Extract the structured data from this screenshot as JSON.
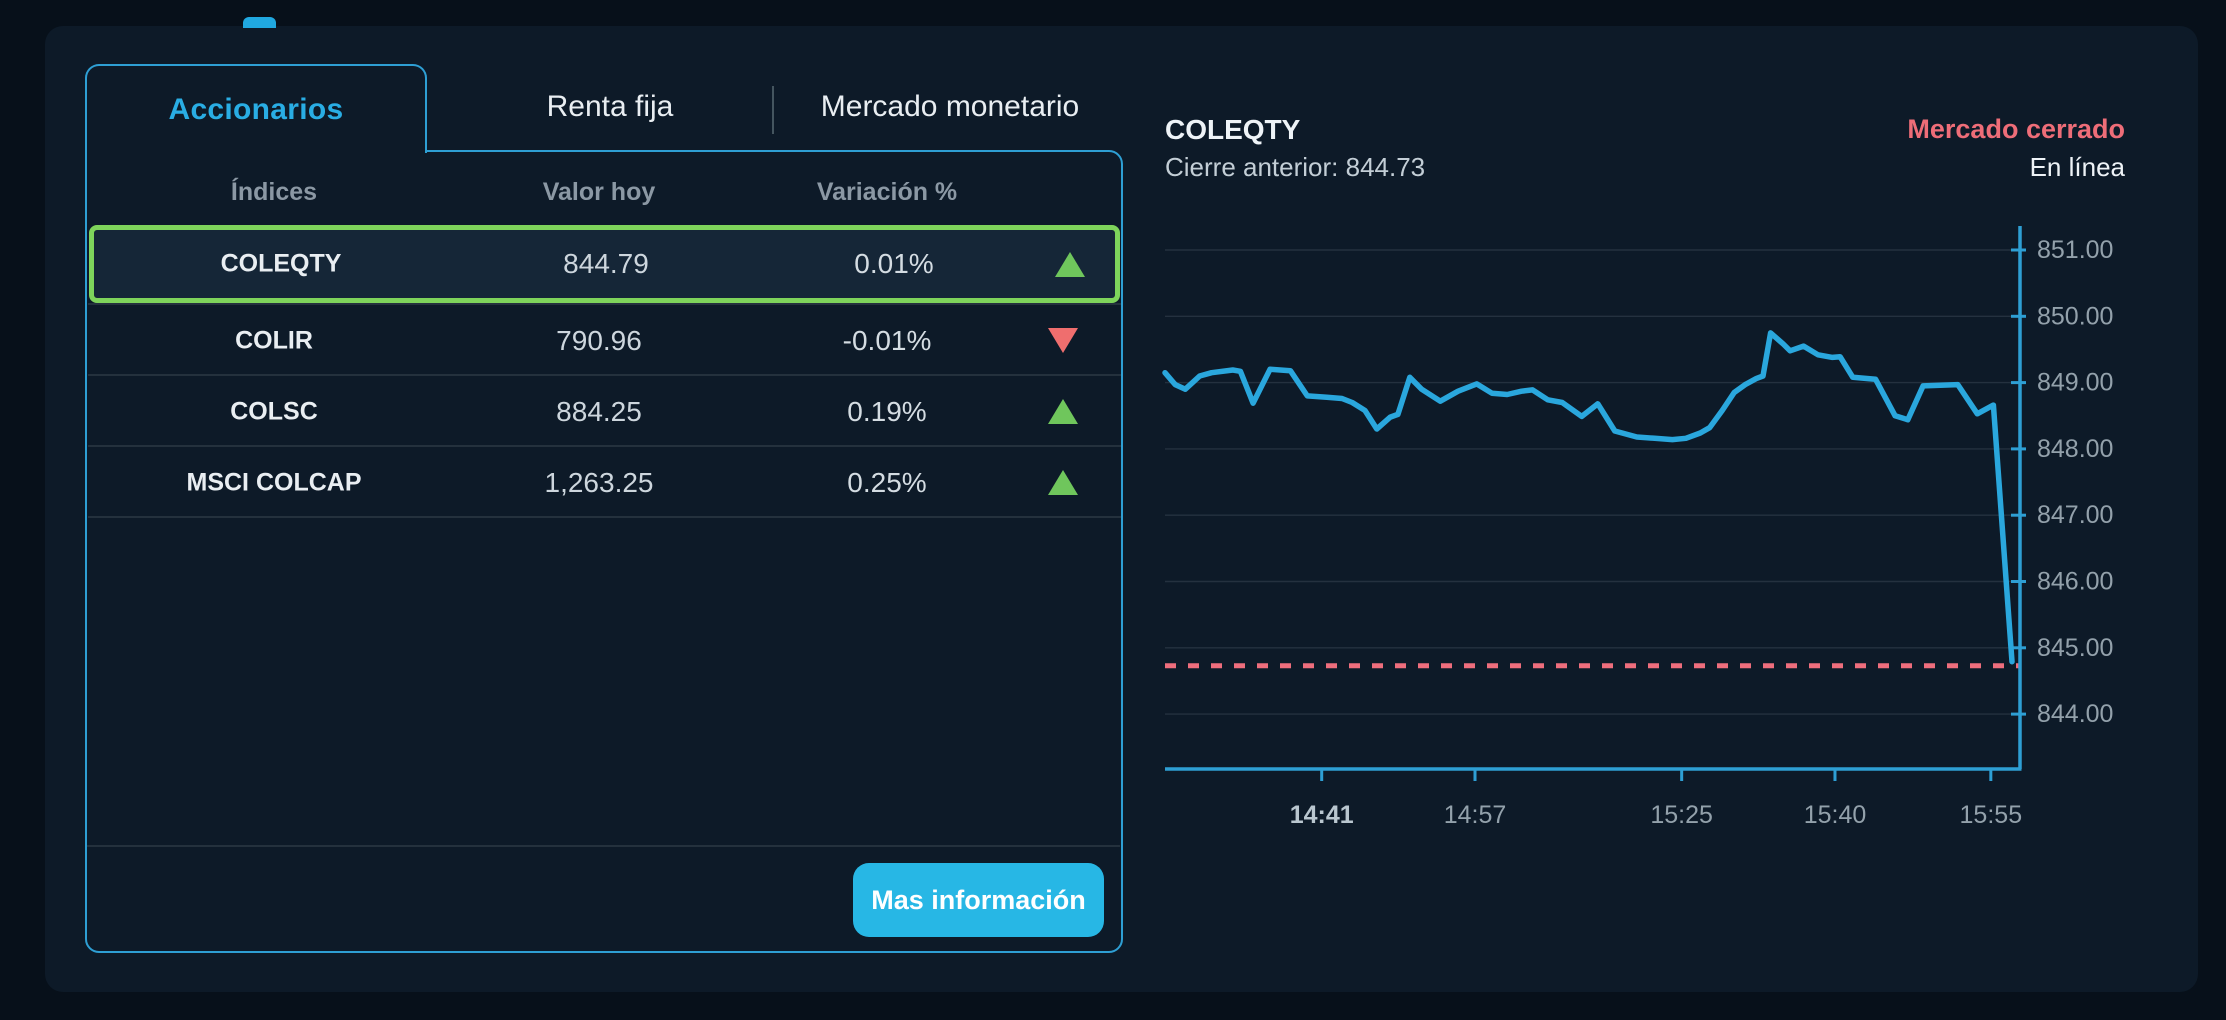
{
  "colors": {
    "background": "#07101a",
    "card": "#0d1a28",
    "accent_cyan": "#29ade4",
    "border_cyan": "#2e9fd4",
    "button_cyan": "#27b7e5",
    "chart_line": "#2aa7dd",
    "up_green": "#6fc65c",
    "selected_border_green": "#7ed45b",
    "down_red": "#ef6e6e",
    "status_red": "#ee6d78",
    "reference_dotted": "#ee6e7d"
  },
  "tabs": {
    "items": [
      {
        "label": "Accionarios",
        "active": true
      },
      {
        "label": "Renta fija",
        "active": false
      },
      {
        "label": "Mercado monetario",
        "active": false
      }
    ]
  },
  "table": {
    "headers": [
      "Índices",
      "Valor hoy",
      "Variación %"
    ],
    "rows": [
      {
        "name": "COLEQTY",
        "value": "844.79",
        "variation": "0.01%",
        "direction": "up",
        "selected": true
      },
      {
        "name": "COLIR",
        "value": "790.96",
        "variation": "-0.01%",
        "direction": "down",
        "selected": false
      },
      {
        "name": "COLSC",
        "value": "884.25",
        "variation": "0.19%",
        "direction": "up",
        "selected": false
      },
      {
        "name": "MSCI COLCAP",
        "value": "1,263.25",
        "variation": "0.25%",
        "direction": "up",
        "selected": false
      }
    ],
    "more_info_label": "Mas información"
  },
  "chart_header": {
    "title": "COLEQTY",
    "previous_close_label": "Cierre anterior: 844.73",
    "market_status": "Mercado cerrado",
    "online_status": "En línea"
  },
  "chart_data": {
    "type": "line",
    "title": "COLEQTY intraday price",
    "ylabel": "",
    "xlabel": "",
    "ylim": [
      843.2,
      851.5
    ],
    "grid": true,
    "previous_close": 844.73,
    "y_ticks": [
      {
        "value": 851,
        "label": "851.00"
      },
      {
        "value": 850,
        "label": "850.00"
      },
      {
        "value": 849,
        "label": "849.00"
      },
      {
        "value": 848,
        "label": "848.00"
      },
      {
        "value": 847,
        "label": "847.00"
      },
      {
        "value": 846,
        "label": "846.00"
      },
      {
        "value": 845,
        "label": "845.00"
      },
      {
        "value": 844,
        "label": "844.00"
      }
    ],
    "x_ticks": [
      {
        "label": "14:41",
        "f": 0.185,
        "bold": true
      },
      {
        "label": "14:57",
        "f": 0.366,
        "bold": false
      },
      {
        "label": "15:25",
        "f": 0.61,
        "bold": false
      },
      {
        "label": "15:40",
        "f": 0.791,
        "bold": false
      },
      {
        "label": "15:55",
        "f": 0.975,
        "bold": false
      }
    ],
    "series": [
      {
        "name": "COLEQTY",
        "color": "#2aa7dd",
        "points": [
          [
            0.0,
            849.15
          ],
          [
            0.012,
            848.97
          ],
          [
            0.024,
            848.9
          ],
          [
            0.041,
            849.1
          ],
          [
            0.055,
            849.15
          ],
          [
            0.08,
            849.19
          ],
          [
            0.089,
            849.17
          ],
          [
            0.104,
            848.69
          ],
          [
            0.124,
            849.2
          ],
          [
            0.148,
            849.18
          ],
          [
            0.168,
            848.8
          ],
          [
            0.191,
            848.78
          ],
          [
            0.209,
            848.76
          ],
          [
            0.221,
            848.7
          ],
          [
            0.236,
            848.58
          ],
          [
            0.25,
            848.3
          ],
          [
            0.266,
            848.48
          ],
          [
            0.275,
            848.52
          ],
          [
            0.289,
            849.08
          ],
          [
            0.303,
            848.9
          ],
          [
            0.325,
            848.72
          ],
          [
            0.346,
            848.87
          ],
          [
            0.368,
            848.98
          ],
          [
            0.386,
            848.84
          ],
          [
            0.404,
            848.82
          ],
          [
            0.421,
            848.87
          ],
          [
            0.434,
            848.89
          ],
          [
            0.452,
            848.74
          ],
          [
            0.469,
            848.7
          ],
          [
            0.492,
            848.49
          ],
          [
            0.511,
            848.68
          ],
          [
            0.531,
            848.27
          ],
          [
            0.557,
            848.18
          ],
          [
            0.578,
            848.16
          ],
          [
            0.599,
            848.14
          ],
          [
            0.615,
            848.16
          ],
          [
            0.632,
            848.24
          ],
          [
            0.643,
            848.32
          ],
          [
            0.658,
            848.58
          ],
          [
            0.672,
            848.85
          ],
          [
            0.685,
            848.97
          ],
          [
            0.698,
            849.06
          ],
          [
            0.706,
            849.1
          ],
          [
            0.715,
            849.75
          ],
          [
            0.73,
            849.58
          ],
          [
            0.738,
            849.48
          ],
          [
            0.754,
            849.55
          ],
          [
            0.771,
            849.42
          ],
          [
            0.788,
            849.38
          ],
          [
            0.797,
            849.39
          ],
          [
            0.812,
            849.08
          ],
          [
            0.839,
            849.05
          ],
          [
            0.862,
            848.5
          ],
          [
            0.877,
            848.44
          ],
          [
            0.895,
            848.95
          ],
          [
            0.936,
            848.97
          ],
          [
            0.959,
            848.53
          ],
          [
            0.978,
            848.66
          ],
          [
            1.0,
            844.79
          ]
        ]
      }
    ]
  }
}
